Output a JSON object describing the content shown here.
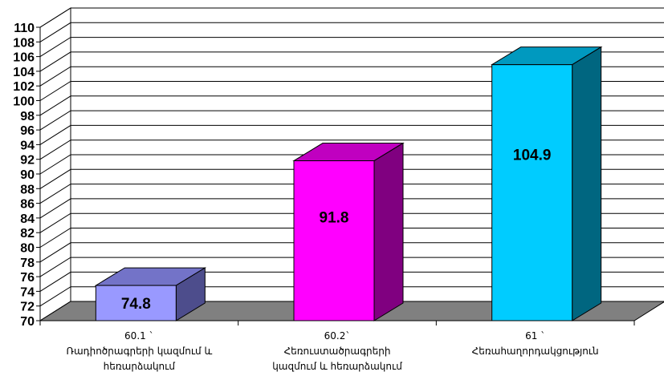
{
  "chart_data": {
    "type": "bar",
    "style": "3d-column",
    "categories": [
      [
        "60.1 `",
        "Ռադիոծրագրերի կազմում և",
        "հեռարձակում"
      ],
      [
        "60.2`",
        "Հեռուստածրագրերի",
        "կազմում և հեռարձակում"
      ],
      [
        "61 `",
        "Հեռահաղորդակցություն"
      ]
    ],
    "values": [
      74.8,
      91.8,
      104.9
    ],
    "value_labels": [
      "74.8",
      "91.8",
      "104.9"
    ],
    "ylim": [
      70,
      110
    ],
    "yticks": [
      70,
      72,
      74,
      76,
      78,
      80,
      82,
      84,
      86,
      88,
      90,
      92,
      94,
      96,
      98,
      100,
      102,
      104,
      106,
      108,
      110
    ],
    "grid": true,
    "legend": "none",
    "colors": {
      "bars": [
        {
          "front": "#9999ff",
          "side": "#4d4d8c",
          "top": "#7373c8"
        },
        {
          "front": "#ff00ff",
          "side": "#800080",
          "top": "#c000c0"
        },
        {
          "front": "#00ccff",
          "side": "#006680",
          "top": "#0099bf"
        }
      ],
      "floor": "#808080",
      "wall": "#ffffff",
      "gridline": "#000000"
    }
  }
}
